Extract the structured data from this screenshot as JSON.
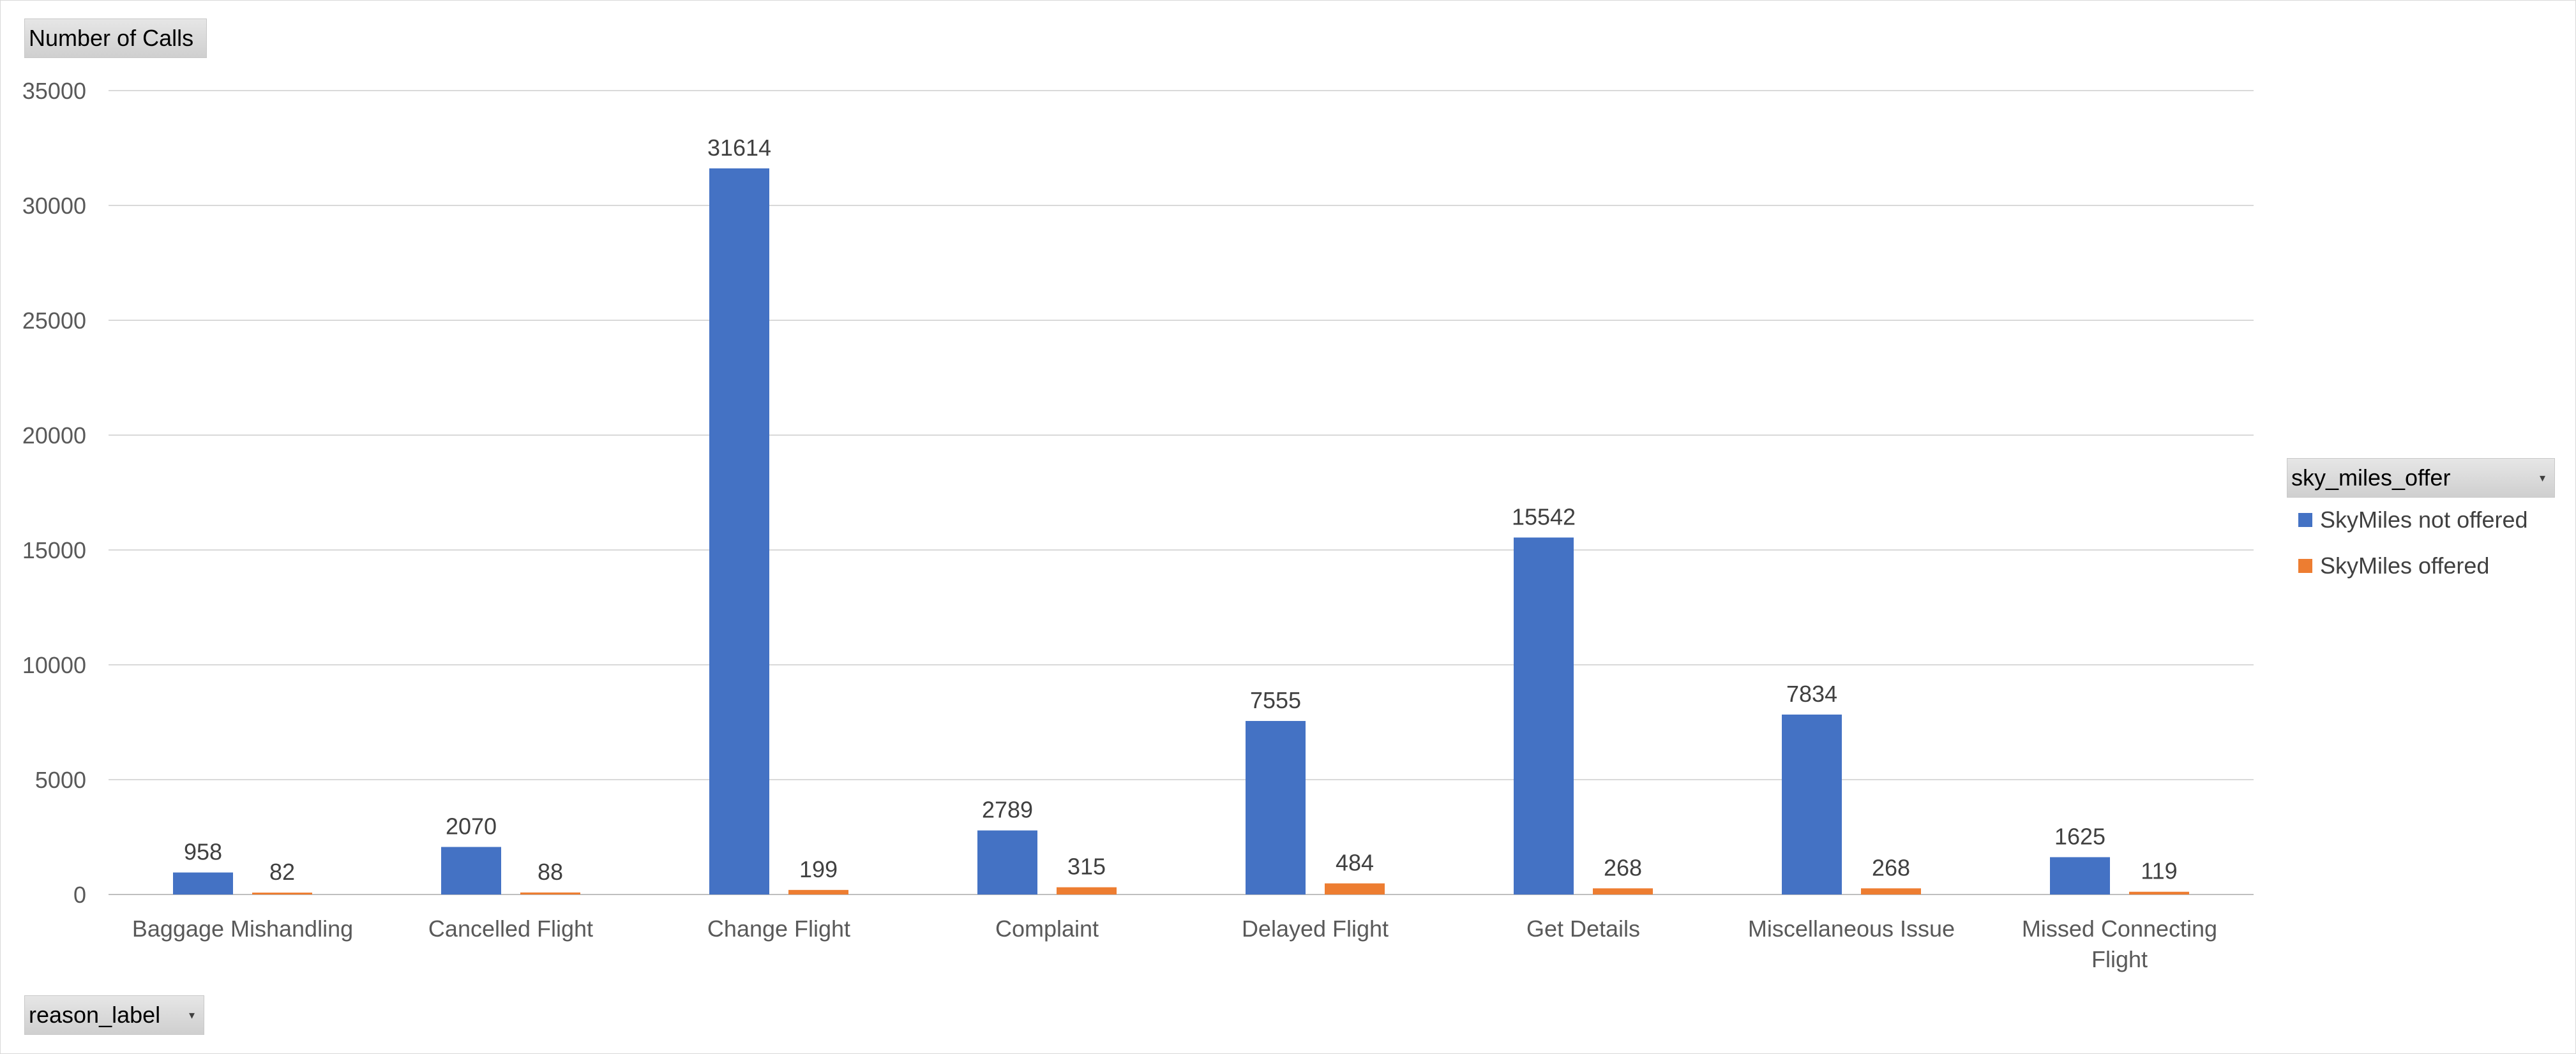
{
  "buttons": {
    "values": "Number of Calls",
    "axis": "reason_label",
    "legend": "sky_miles_offer"
  },
  "chart_data": {
    "type": "bar",
    "categories": [
      [
        "Baggage Mishandling"
      ],
      [
        "Cancelled Flight"
      ],
      [
        "Change Flight"
      ],
      [
        "Complaint"
      ],
      [
        "Delayed Flight"
      ],
      [
        "Get Details"
      ],
      [
        "Miscellaneous Issue"
      ],
      [
        "Missed Connecting",
        "Flight"
      ]
    ],
    "series": [
      {
        "name": "SkyMiles not offered",
        "color": "#4472C4",
        "values": [
          958,
          2070,
          31614,
          2789,
          7555,
          15542,
          7834,
          1625
        ]
      },
      {
        "name": "SkyMiles offered",
        "color": "#ED7D31",
        "values": [
          82,
          88,
          199,
          315,
          484,
          268,
          268,
          119
        ]
      }
    ],
    "ylim": [
      0,
      35000
    ],
    "yticks": [
      0,
      5000,
      10000,
      15000,
      20000,
      25000,
      30000,
      35000
    ],
    "grid": true,
    "data_labels": true,
    "legend_position": "right"
  }
}
